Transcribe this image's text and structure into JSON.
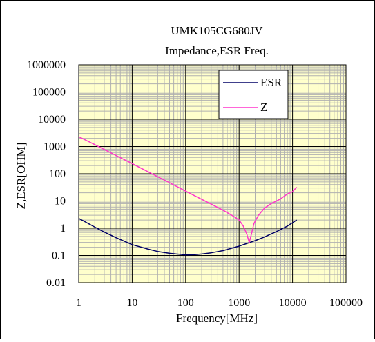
{
  "chart_data": {
    "type": "line",
    "title": "UMK105CG680JV",
    "subtitle": "Impedance,ESR Freq.",
    "xlabel": "Frequency[MHz]",
    "ylabel": "Z,ESR[OHM]",
    "x_scale": "log",
    "y_scale": "log",
    "xlim": [
      1,
      100000
    ],
    "ylim": [
      0.01,
      1000000
    ],
    "x_tick_labels": [
      "1",
      "10",
      "100",
      "1000",
      "10000",
      "100000"
    ],
    "y_tick_labels": [
      "1000000",
      "100000",
      "10000",
      "1000",
      "100",
      "10",
      "1",
      "0.1",
      "0.01"
    ],
    "grid": true,
    "plot_background": "#ffffcc",
    "legend_position": "top-right",
    "series": [
      {
        "name": "ESR",
        "color": "#000066",
        "points": [
          [
            1,
            2.3
          ],
          [
            2,
            1.1
          ],
          [
            3,
            0.72
          ],
          [
            5,
            0.45
          ],
          [
            10,
            0.25
          ],
          [
            20,
            0.17
          ],
          [
            30,
            0.14
          ],
          [
            50,
            0.12
          ],
          [
            80,
            0.11
          ],
          [
            100,
            0.105
          ],
          [
            150,
            0.108
          ],
          [
            200,
            0.113
          ],
          [
            300,
            0.125
          ],
          [
            500,
            0.15
          ],
          [
            1000,
            0.22
          ],
          [
            2000,
            0.35
          ],
          [
            3000,
            0.48
          ],
          [
            5000,
            0.75
          ],
          [
            8000,
            1.2
          ],
          [
            12000,
            2.0
          ]
        ]
      },
      {
        "name": "Z",
        "color": "#ff33cc",
        "points": [
          [
            1,
            2300
          ],
          [
            2,
            1170
          ],
          [
            5,
            470
          ],
          [
            10,
            235
          ],
          [
            20,
            117
          ],
          [
            50,
            47
          ],
          [
            100,
            23
          ],
          [
            200,
            11.5
          ],
          [
            500,
            4.6
          ],
          [
            800,
            2.7
          ],
          [
            1000,
            2.0
          ],
          [
            1200,
            1.2
          ],
          [
            1400,
            0.6
          ],
          [
            1550,
            0.3
          ],
          [
            1700,
            0.6
          ],
          [
            1900,
            1.5
          ],
          [
            2300,
            3.0
          ],
          [
            3000,
            5.5
          ],
          [
            4000,
            8.0
          ],
          [
            6000,
            12
          ],
          [
            7000,
            15
          ],
          [
            8000,
            18
          ],
          [
            9000,
            20
          ],
          [
            10000,
            22
          ],
          [
            11000,
            27
          ],
          [
            12000,
            32
          ]
        ]
      }
    ]
  }
}
